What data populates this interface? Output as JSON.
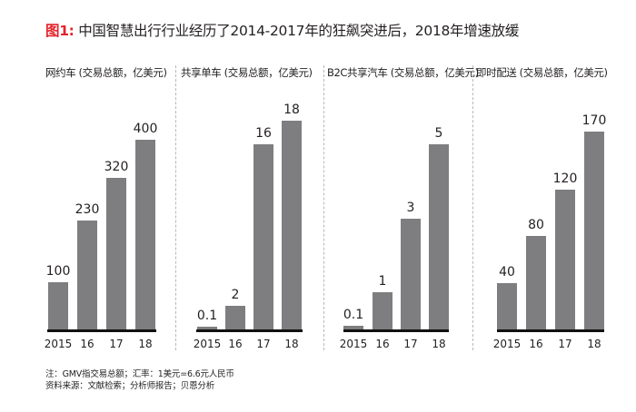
{
  "title": {
    "prefix": "图1:",
    "text": " 中国智慧出行行业经历了2014-2017年的狂飙突进后，2018年增速放缓"
  },
  "colors": {
    "accent": "#e4222b",
    "bar": "#7e7e81",
    "axis": "#111111",
    "text": "#231f20"
  },
  "notes": [
    "注：GMV指交易总额；汇率：1美元=6.6元人民币",
    "资料来源：文献检索；分析师报告；贝恩分析"
  ],
  "chart_data": [
    {
      "type": "bar",
      "title": "网约车 (交易总额，亿美元)",
      "categories": [
        "2015",
        "16",
        "17",
        "18"
      ],
      "values": [
        100,
        230,
        320,
        400
      ],
      "value_labels": [
        "100",
        "230",
        "320",
        "400"
      ],
      "xlabel": "",
      "ylabel": "交易总额（亿美元）",
      "ylim": [
        0,
        400
      ],
      "grid": false
    },
    {
      "type": "bar",
      "title": "共享单车 (交易总额，亿美元)",
      "categories": [
        "2015",
        "16",
        "17",
        "18"
      ],
      "values": [
        0.1,
        2,
        16,
        18
      ],
      "value_labels": [
        "0.1",
        "2",
        "16",
        "18"
      ],
      "xlabel": "",
      "ylabel": "交易总额（亿美元）",
      "ylim": [
        0,
        18
      ],
      "grid": false
    },
    {
      "type": "bar",
      "title": "B2C共享汽车 (交易总额，亿美元)",
      "categories": [
        "2015",
        "16",
        "17",
        "18"
      ],
      "values": [
        0.1,
        1,
        3,
        5
      ],
      "value_labels": [
        "0.1",
        "1",
        "3",
        "5"
      ],
      "xlabel": "",
      "ylabel": "交易总额（亿美元）",
      "ylim": [
        0,
        5
      ],
      "grid": false
    },
    {
      "type": "bar",
      "title": "即时配送 (交易总额，亿美元)",
      "categories": [
        "2015",
        "16",
        "17",
        "18"
      ],
      "values": [
        40,
        80,
        120,
        170
      ],
      "value_labels": [
        "40",
        "80",
        "120",
        "170"
      ],
      "xlabel": "",
      "ylabel": "交易总额（亿美元）",
      "ylim": [
        0,
        170
      ],
      "grid": false
    }
  ]
}
